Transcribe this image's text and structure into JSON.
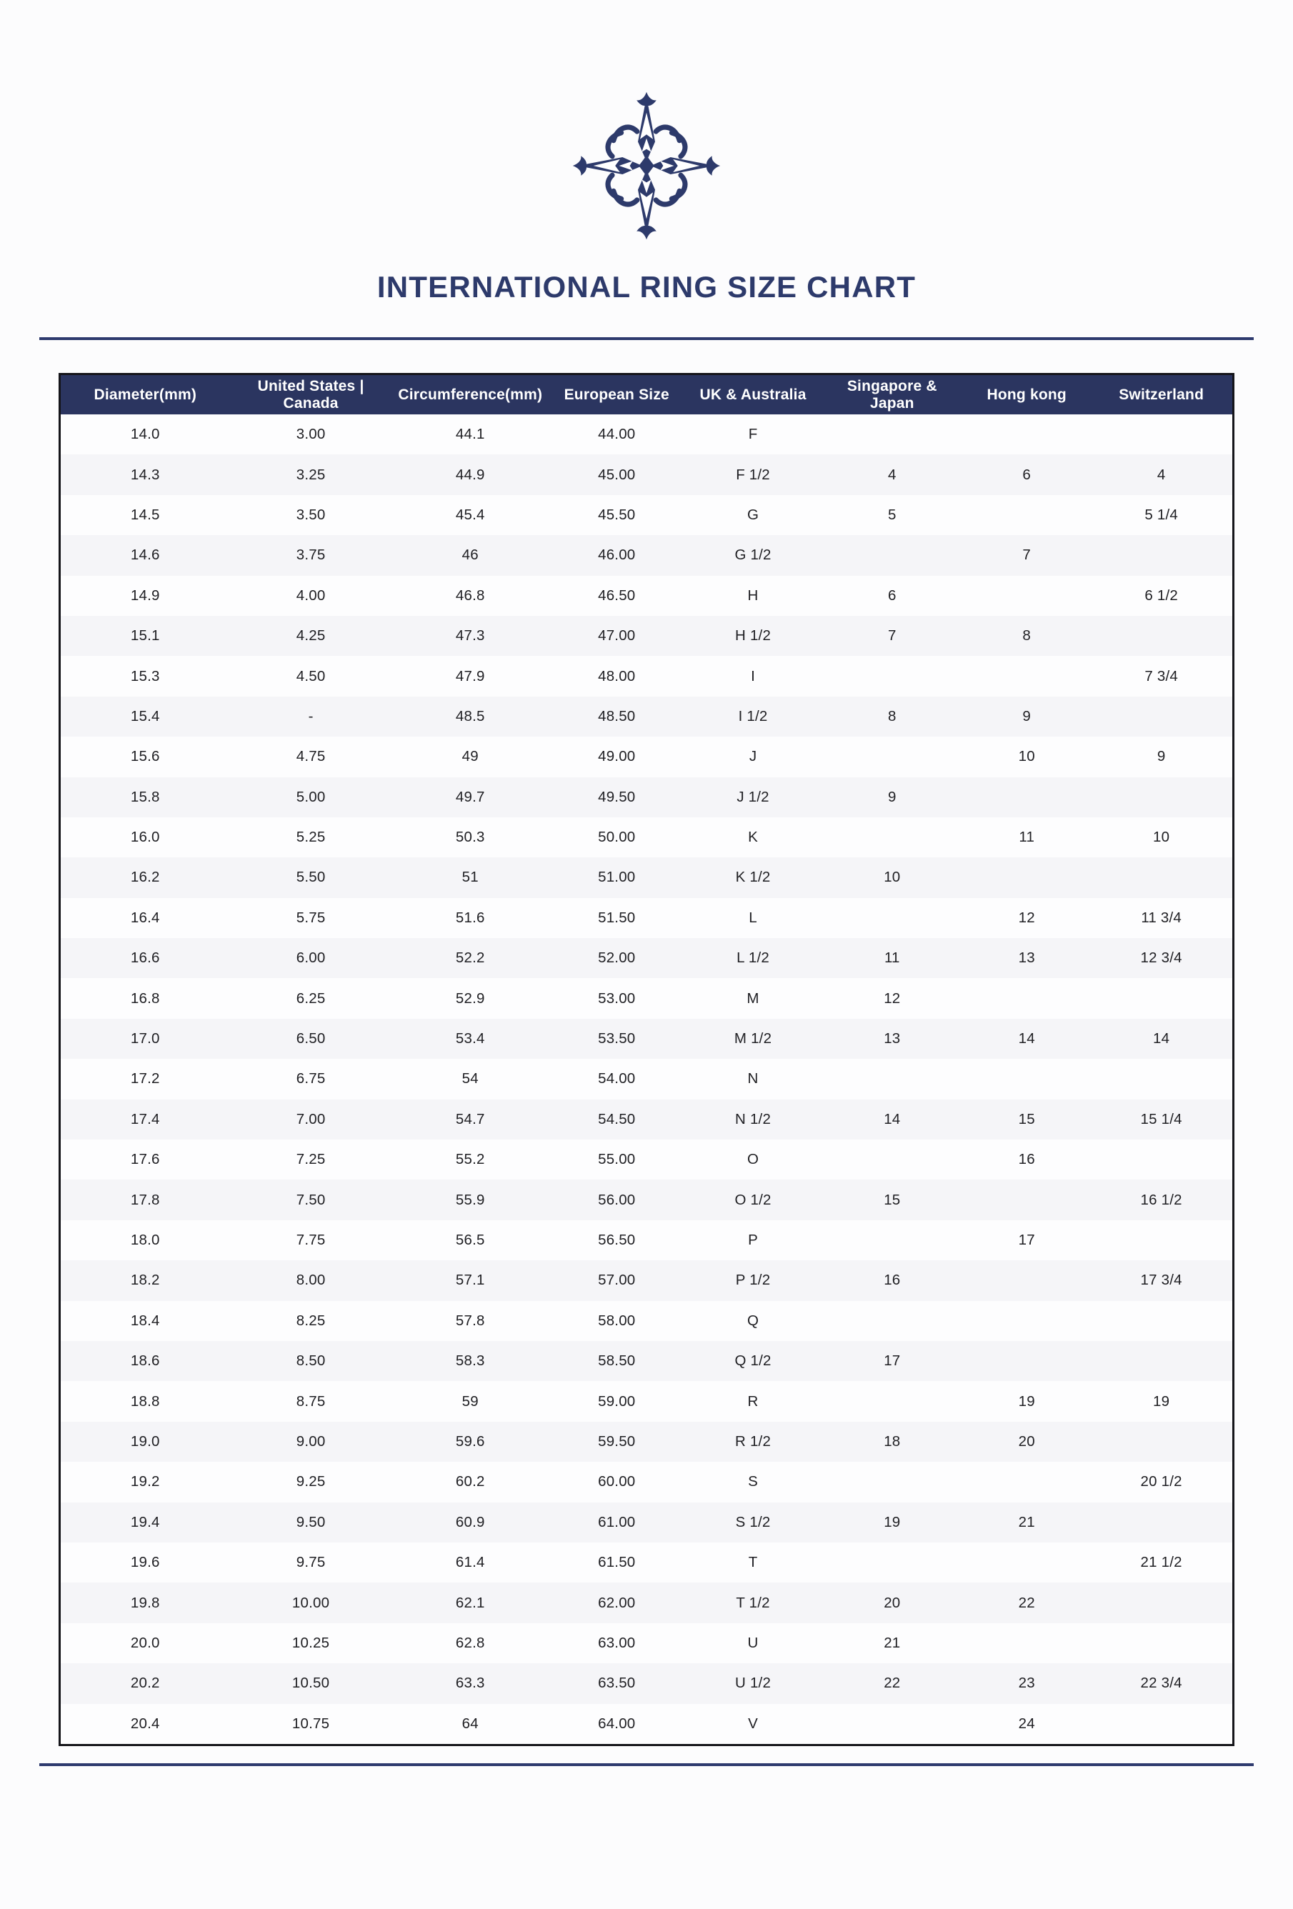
{
  "header": {
    "title": "INTERNATIONAL RING SIZE CHART",
    "logo": "ornamental-compass-star"
  },
  "colors": {
    "brand_navy": "#2d3a6b",
    "header_navy": "#2b3560",
    "rule_navy": "#2e3a6e",
    "row_alt_bg": "#f5f5f8",
    "row_bg": "#fdfdfe",
    "table_border": "#15151a",
    "body_text": "#202024",
    "header_text": "#ffffff",
    "page_bg": "#fcfcfd"
  },
  "table": {
    "columns": [
      "Diameter(mm)",
      "United States | Canada",
      "Circumference(mm)",
      "European Size",
      "UK & Australia",
      "Singapore & Japan",
      "Hong kong",
      "Switzerland"
    ],
    "rows": [
      [
        "14.0",
        "3.00",
        "44.1",
        "44.00",
        "F",
        "",
        "",
        ""
      ],
      [
        "14.3",
        "3.25",
        "44.9",
        "45.00",
        "F 1/2",
        "4",
        "6",
        "4"
      ],
      [
        "14.5",
        "3.50",
        "45.4",
        "45.50",
        "G",
        "5",
        "",
        "5 1/4"
      ],
      [
        "14.6",
        "3.75",
        "46",
        "46.00",
        "G 1/2",
        "",
        "7",
        ""
      ],
      [
        "14.9",
        "4.00",
        "46.8",
        "46.50",
        "H",
        "6",
        "",
        "6 1/2"
      ],
      [
        "15.1",
        "4.25",
        "47.3",
        "47.00",
        "H 1/2",
        "7",
        "8",
        ""
      ],
      [
        "15.3",
        "4.50",
        "47.9",
        "48.00",
        "I",
        "",
        "",
        "7 3/4"
      ],
      [
        "15.4",
        "-",
        "48.5",
        "48.50",
        "I 1/2",
        "8",
        "9",
        ""
      ],
      [
        "15.6",
        "4.75",
        "49",
        "49.00",
        "J",
        "",
        "10",
        "9"
      ],
      [
        "15.8",
        "5.00",
        "49.7",
        "49.50",
        "J 1/2",
        "9",
        "",
        ""
      ],
      [
        "16.0",
        "5.25",
        "50.3",
        "50.00",
        "K",
        "",
        "11",
        "10"
      ],
      [
        "16.2",
        "5.50",
        "51",
        "51.00",
        "K 1/2",
        "10",
        "",
        ""
      ],
      [
        "16.4",
        "5.75",
        "51.6",
        "51.50",
        "L",
        "",
        "12",
        "11 3/4"
      ],
      [
        "16.6",
        "6.00",
        "52.2",
        "52.00",
        "L 1/2",
        "11",
        "13",
        "12 3/4"
      ],
      [
        "16.8",
        "6.25",
        "52.9",
        "53.00",
        "M",
        "12",
        "",
        ""
      ],
      [
        "17.0",
        "6.50",
        "53.4",
        "53.50",
        "M 1/2",
        "13",
        "14",
        "14"
      ],
      [
        "17.2",
        "6.75",
        "54",
        "54.00",
        "N",
        "",
        "",
        ""
      ],
      [
        "17.4",
        "7.00",
        "54.7",
        "54.50",
        "N 1/2",
        "14",
        "15",
        "15 1/4"
      ],
      [
        "17.6",
        "7.25",
        "55.2",
        "55.00",
        "O",
        "",
        "16",
        ""
      ],
      [
        "17.8",
        "7.50",
        "55.9",
        "56.00",
        "O 1/2",
        "15",
        "",
        "16 1/2"
      ],
      [
        "18.0",
        "7.75",
        "56.5",
        "56.50",
        "P",
        "",
        "17",
        ""
      ],
      [
        "18.2",
        "8.00",
        "57.1",
        "57.00",
        "P 1/2",
        "16",
        "",
        "17 3/4"
      ],
      [
        "18.4",
        "8.25",
        "57.8",
        "58.00",
        "Q",
        "",
        "",
        ""
      ],
      [
        "18.6",
        "8.50",
        "58.3",
        "58.50",
        "Q 1/2",
        "17",
        "",
        ""
      ],
      [
        "18.8",
        "8.75",
        "59",
        "59.00",
        "R",
        "",
        "19",
        "19"
      ],
      [
        "19.0",
        "9.00",
        "59.6",
        "59.50",
        "R 1/2",
        "18",
        "20",
        ""
      ],
      [
        "19.2",
        "9.25",
        "60.2",
        "60.00",
        "S",
        "",
        "",
        "20 1/2"
      ],
      [
        "19.4",
        "9.50",
        "60.9",
        "61.00",
        "S 1/2",
        "19",
        "21",
        ""
      ],
      [
        "19.6",
        "9.75",
        "61.4",
        "61.50",
        "T",
        "",
        "",
        "21 1/2"
      ],
      [
        "19.8",
        "10.00",
        "62.1",
        "62.00",
        "T 1/2",
        "20",
        "22",
        ""
      ],
      [
        "20.0",
        "10.25",
        "62.8",
        "63.00",
        "U",
        "21",
        "",
        ""
      ],
      [
        "20.2",
        "10.50",
        "63.3",
        "63.50",
        "U 1/2",
        "22",
        "23",
        "22 3/4"
      ],
      [
        "20.4",
        "10.75",
        "64",
        "64.00",
        "V",
        "",
        "24",
        ""
      ]
    ]
  }
}
